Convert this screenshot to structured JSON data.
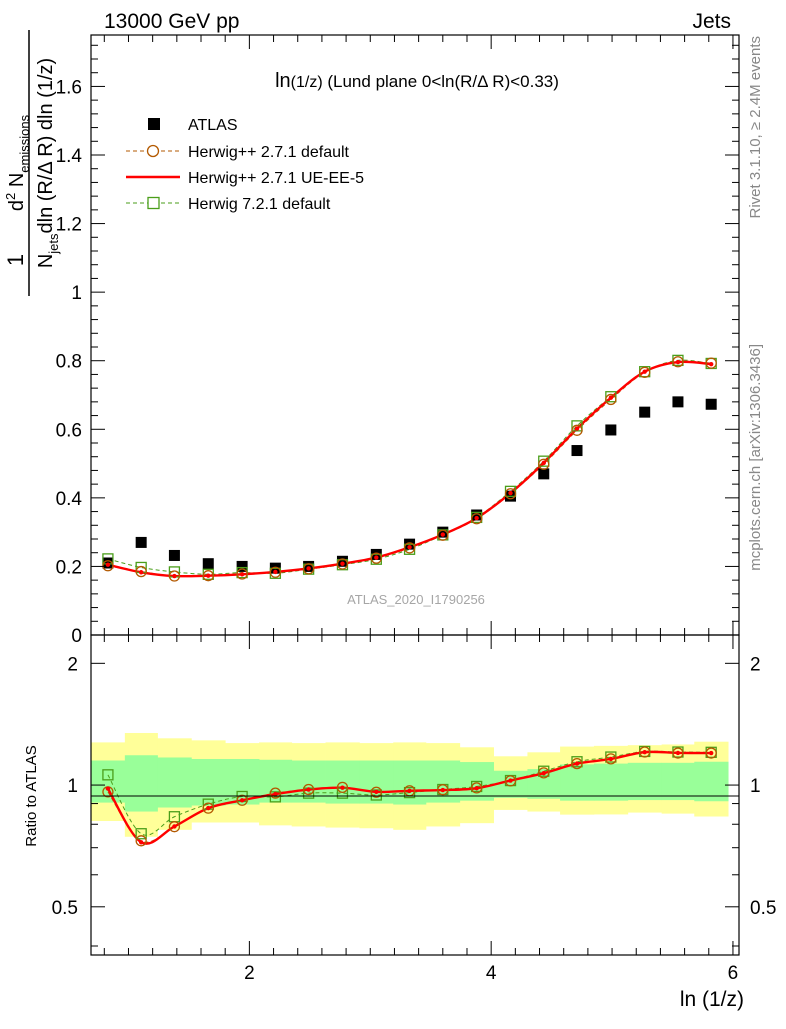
{
  "header": {
    "left": "13000 GeV pp",
    "right": "Jets"
  },
  "plot_title": {
    "main": "ln",
    "sub": "(1/z)",
    "rest": " (Lund plane 0<ln(R/Δ R)<0.33)"
  },
  "side_labels": {
    "rivet": "Rivet 3.1.10, ≥ 2.4M events",
    "mcplots": "mcplots.cern.ch [arXiv:1306.3436]"
  },
  "watermark": "ATLAS_2020_I1790256",
  "ylabel_main": {
    "one": "1",
    "n_jets": "N",
    "jets_sub": "jets",
    "den_rest": "dln (R/Δ R) dln (1/z)",
    "d2": "d",
    "two": "2",
    "n_em": " N",
    "em_sub": "emissions"
  },
  "xlabel": "ln (1/z)",
  "ylabel_ratio": "Ratio to ATLAS",
  "legend": [
    {
      "label": "ATLAS",
      "color": "#000000",
      "marker": "square-filled"
    },
    {
      "label": "Herwig++ 2.7.1 default",
      "color": "#b35900",
      "marker": "circle-open"
    },
    {
      "label": "Herwig++ 2.7.1 UE-EE-5",
      "color": "#ff0000",
      "marker": "line"
    },
    {
      "label": "Herwig 7.2.1 default",
      "color": "#4a9e1a",
      "marker": "square-open"
    }
  ],
  "chart_data": {
    "type": "scatter",
    "title": "ln(1/z) (Lund plane 0<ln(R/Δ R)<0.33)",
    "xlabel": "ln (1/z)",
    "ylabel": "1/N_jets d²N_emissions / dln(R/ΔR) dln(1/z)",
    "xlim": [
      0.69,
      6.05
    ],
    "ylim": [
      0,
      1.75
    ],
    "ratio_ylim": [
      0.38,
      2.35
    ],
    "x_ticks": [
      2,
      4,
      6
    ],
    "y_ticks": [
      0,
      0.2,
      0.4,
      0.6,
      0.8,
      1,
      1.2,
      1.4,
      1.6
    ],
    "ratio_ticks": [
      0.5,
      1,
      2
    ],
    "x_bins": [
      0.69,
      0.97,
      1.24,
      1.52,
      1.8,
      2.08,
      2.35,
      2.63,
      2.91,
      3.19,
      3.46,
      3.74,
      4.02,
      4.3,
      4.57,
      4.85,
      5.13,
      5.41,
      5.68,
      5.96
    ],
    "x": [
      0.83,
      1.105,
      1.38,
      1.66,
      1.94,
      2.215,
      2.49,
      2.77,
      3.05,
      3.325,
      3.6,
      3.88,
      4.16,
      4.435,
      4.71,
      4.99,
      5.27,
      5.545,
      5.82
    ],
    "series": [
      {
        "name": "ATLAS",
        "values": [
          0.21,
          0.27,
          0.232,
          0.208,
          0.2,
          0.195,
          0.2,
          0.215,
          0.235,
          0.265,
          0.3,
          0.35,
          0.405,
          0.47,
          0.538,
          0.598,
          0.65,
          0.68,
          0.673
        ]
      },
      {
        "name": "Herwig++ 2.7.1 default",
        "values": [
          0.202,
          0.185,
          0.172,
          0.173,
          0.178,
          0.183,
          0.193,
          0.207,
          0.224,
          0.254,
          0.291,
          0.339,
          0.412,
          0.498,
          0.597,
          0.687,
          0.766,
          0.797,
          0.793
        ]
      },
      {
        "name": "Herwig++ 2.7.1 UE-EE-5",
        "values": [
          0.205,
          0.183,
          0.172,
          0.173,
          0.177,
          0.184,
          0.194,
          0.208,
          0.226,
          0.256,
          0.293,
          0.341,
          0.414,
          0.502,
          0.602,
          0.692,
          0.768,
          0.796,
          0.79
        ]
      },
      {
        "name": "Herwig 7.2.1 default",
        "values": [
          0.222,
          0.197,
          0.184,
          0.177,
          0.182,
          0.18,
          0.192,
          0.205,
          0.221,
          0.25,
          0.292,
          0.343,
          0.419,
          0.507,
          0.61,
          0.695,
          0.768,
          0.801,
          0.792
        ]
      }
    ],
    "ratios": [
      {
        "name": "Herwig++ 2.7.1 default",
        "values": [
          0.962,
          0.728,
          0.789,
          0.877,
          0.917,
          0.955,
          0.975,
          0.987,
          0.96,
          0.968,
          0.974,
          0.984,
          1.024,
          1.072,
          1.13,
          1.161,
          1.207,
          1.2,
          1.2
        ]
      },
      {
        "name": "Herwig++ 2.7.1 UE-EE-5",
        "values": [
          0.98,
          0.722,
          0.79,
          0.877,
          0.917,
          0.95,
          0.975,
          0.985,
          0.962,
          0.968,
          0.972,
          0.982,
          1.026,
          1.07,
          1.13,
          1.16,
          1.206,
          1.201,
          1.2
        ]
      },
      {
        "name": "Herwig 7.2.1 default",
        "values": [
          1.06,
          0.758,
          0.835,
          0.897,
          0.937,
          0.935,
          0.955,
          0.955,
          0.945,
          0.958,
          0.975,
          0.992,
          1.026,
          1.082,
          1.142,
          1.173,
          1.211,
          1.207,
          1.205
        ]
      }
    ],
    "band_outer": [
      [
        0.815,
        1.275
      ],
      [
        0.745,
        1.345
      ],
      [
        0.775,
        1.305
      ],
      [
        0.808,
        1.29
      ],
      [
        0.808,
        1.27
      ],
      [
        0.795,
        1.275
      ],
      [
        0.79,
        1.27
      ],
      [
        0.785,
        1.275
      ],
      [
        0.782,
        1.27
      ],
      [
        0.775,
        1.275
      ],
      [
        0.79,
        1.27
      ],
      [
        0.805,
        1.24
      ],
      [
        0.868,
        1.178
      ],
      [
        0.86,
        1.205
      ],
      [
        0.845,
        1.245
      ],
      [
        0.846,
        1.25
      ],
      [
        0.855,
        1.255
      ],
      [
        0.85,
        1.26
      ],
      [
        0.836,
        1.28
      ]
    ],
    "band_inner": [
      [
        0.905,
        1.15
      ],
      [
        0.86,
        1.185
      ],
      [
        0.88,
        1.17
      ],
      [
        0.89,
        1.16
      ],
      [
        0.895,
        1.16
      ],
      [
        0.905,
        1.155
      ],
      [
        0.905,
        1.15
      ],
      [
        0.9,
        1.15
      ],
      [
        0.9,
        1.15
      ],
      [
        0.895,
        1.15
      ],
      [
        0.905,
        1.15
      ],
      [
        0.915,
        1.14
      ],
      [
        0.93,
        1.085
      ],
      [
        0.925,
        1.095
      ],
      [
        0.915,
        1.125
      ],
      [
        0.915,
        1.13
      ],
      [
        0.918,
        1.135
      ],
      [
        0.918,
        1.135
      ],
      [
        0.912,
        1.142
      ]
    ],
    "colors": {
      "band_outer": "#ffff99",
      "band_inner": "#99ff99"
    }
  }
}
